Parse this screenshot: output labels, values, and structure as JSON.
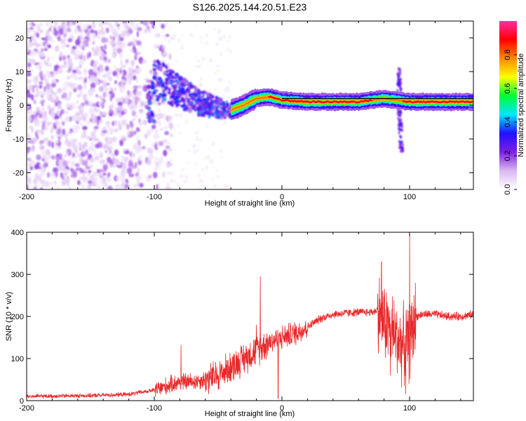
{
  "title": "S126.2025.144.20.51.E23",
  "colors": {
    "snr_line": "#e8282a",
    "axis": "#000000",
    "background": "#ffffff"
  },
  "chart_data": [
    {
      "type": "heatmap",
      "xlabel": "Height of straight line (km)",
      "ylabel": "Frequency (Hz)",
      "xlim": [
        -200,
        150
      ],
      "ylim": [
        -25,
        25
      ],
      "x_ticks": [
        -200,
        -100,
        0,
        100
      ],
      "y_ticks": [
        -20,
        -10,
        0,
        10,
        20
      ],
      "x_tick_labels": [
        "-200",
        "-100",
        "0",
        "100"
      ],
      "y_tick_labels": [
        "-20",
        "-10",
        "0",
        "10",
        "20"
      ],
      "colorbar": {
        "label": "Normalized spectral amplitude",
        "range": [
          0,
          1
        ],
        "ticks": [
          0,
          0.2,
          0.4,
          0.6,
          0.8
        ],
        "tick_labels": [
          "0.0",
          "0.2",
          "0.4",
          "0.6",
          "0.8"
        ],
        "colormap": [
          "#ffffff",
          "#d9b8f2",
          "#7e1fe0",
          "#2010ff",
          "#00e6ff",
          "#00ff33",
          "#ffff00",
          "#ff8800",
          "#ff0000",
          "#ff2ca8"
        ]
      },
      "ridge": [
        {
          "x": -100,
          "y": 8
        },
        {
          "x": -80,
          "y": 4
        },
        {
          "x": -65,
          "y": 1
        },
        {
          "x": -50,
          "y": -1
        },
        {
          "x": -40,
          "y": -1.5
        },
        {
          "x": -30,
          "y": 0
        },
        {
          "x": -20,
          "y": 2
        },
        {
          "x": -10,
          "y": 2.5
        },
        {
          "x": 0,
          "y": 1.5
        },
        {
          "x": 20,
          "y": 1
        },
        {
          "x": 60,
          "y": 1
        },
        {
          "x": 80,
          "y": 2
        },
        {
          "x": 90,
          "y": 1.5
        },
        {
          "x": 100,
          "y": 1
        },
        {
          "x": 150,
          "y": 1
        }
      ],
      "features": {
        "noise_region_x": [
          -200,
          -100
        ],
        "spike_x": 92,
        "spike_y_range": [
          -14,
          11
        ]
      }
    },
    {
      "type": "line",
      "xlabel": "Height of straight line (km)",
      "ylabel": "SNR (10 * v/v)",
      "xlim": [
        -200,
        150
      ],
      "ylim": [
        0,
        400
      ],
      "x_ticks": [
        -200,
        -100,
        0,
        100
      ],
      "y_ticks": [
        0,
        100,
        200,
        300,
        400
      ],
      "x_tick_labels": [
        "-200",
        "-100",
        "0",
        "100"
      ],
      "y_tick_labels": [
        "0",
        "100",
        "200",
        "300",
        "400"
      ],
      "series": [
        {
          "trend": [
            {
              "x": -200,
              "y": 10
            },
            {
              "x": -150,
              "y": 12
            },
            {
              "x": -120,
              "y": 15
            },
            {
              "x": -100,
              "y": 25
            },
            {
              "x": -90,
              "y": 35
            },
            {
              "x": -80,
              "y": 45
            },
            {
              "x": -70,
              "y": 45
            },
            {
              "x": -60,
              "y": 50
            },
            {
              "x": -50,
              "y": 60
            },
            {
              "x": -40,
              "y": 80
            },
            {
              "x": -30,
              "y": 100
            },
            {
              "x": -20,
              "y": 120
            },
            {
              "x": -10,
              "y": 140
            },
            {
              "x": 0,
              "y": 150
            },
            {
              "x": 10,
              "y": 160
            },
            {
              "x": 20,
              "y": 175
            },
            {
              "x": 30,
              "y": 195
            },
            {
              "x": 40,
              "y": 205
            },
            {
              "x": 50,
              "y": 208
            },
            {
              "x": 60,
              "y": 210
            },
            {
              "x": 70,
              "y": 210
            },
            {
              "x": 75,
              "y": 215
            },
            {
              "x": 80,
              "y": 190
            },
            {
              "x": 90,
              "y": 150
            },
            {
              "x": 95,
              "y": 130
            },
            {
              "x": 100,
              "y": 140
            },
            {
              "x": 105,
              "y": 200
            },
            {
              "x": 110,
              "y": 205
            },
            {
              "x": 120,
              "y": 205
            },
            {
              "x": 130,
              "y": 200
            },
            {
              "x": 140,
              "y": 200
            },
            {
              "x": 150,
              "y": 205
            }
          ],
          "peaks": [
            {
              "x": -79,
              "y": 132
            },
            {
              "x": -17,
              "y": 295
            },
            {
              "x": -20,
              "y": 180
            },
            {
              "x": 78,
              "y": 330
            },
            {
              "x": 85,
              "y": 320
            },
            {
              "x": 97,
              "y": 365
            },
            {
              "x": 100,
              "y": 400
            }
          ],
          "troughs": [
            {
              "x": -3,
              "y": 5
            },
            {
              "x": 97,
              "y": 15
            },
            {
              "x": 85,
              "y": 60
            }
          ]
        }
      ]
    }
  ]
}
